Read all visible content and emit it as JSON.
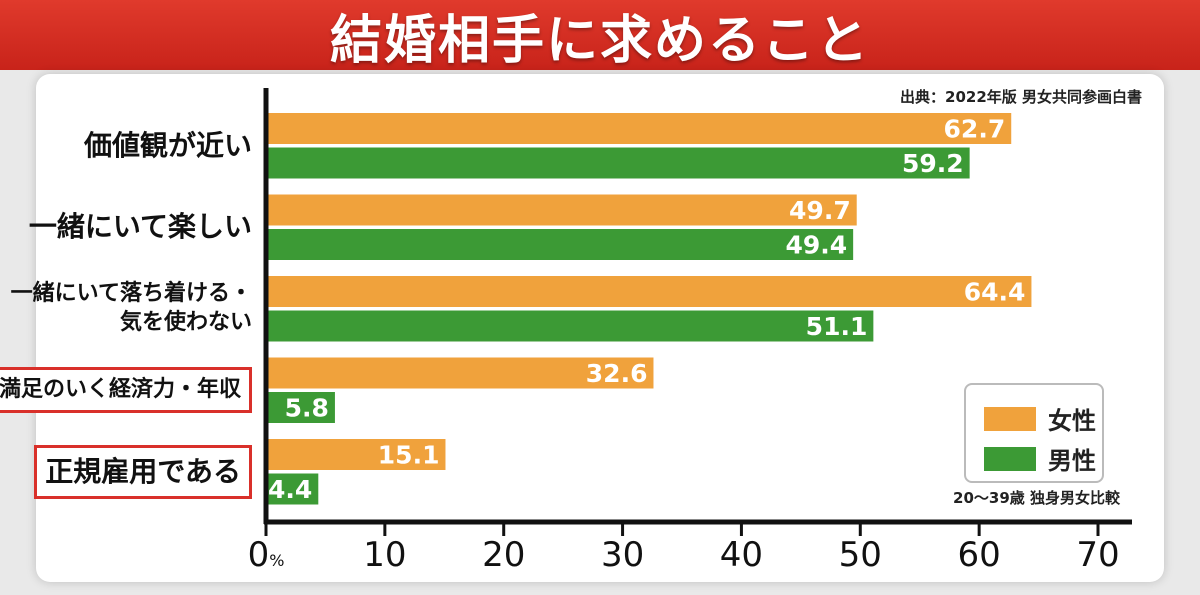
{
  "title": "結婚相手に求めること",
  "source": "出典：2022年版 男女共同参画白書",
  "note": "20〜39歳 独身男女比較",
  "colors": {
    "female": "#f0a23c",
    "male": "#3c9a35",
    "highlight": "#d9302a",
    "title_bg": "#d8291f"
  },
  "legend": [
    {
      "label": "女性",
      "color": "#f0a23c"
    },
    {
      "label": "男性",
      "color": "#3c9a35"
    }
  ],
  "chart_data": {
    "type": "bar",
    "orientation": "horizontal",
    "categories": [
      {
        "lines": [
          "価値観が近い"
        ],
        "highlighted": false
      },
      {
        "lines": [
          "一緒にいて楽しい"
        ],
        "highlighted": false
      },
      {
        "lines": [
          "一緒にいて落ち着ける・",
          "気を使わない"
        ],
        "highlighted": false
      },
      {
        "lines": [
          "満足のいく経済力・年収"
        ],
        "highlighted": true
      },
      {
        "lines": [
          "正規雇用である"
        ],
        "highlighted": true
      }
    ],
    "series": [
      {
        "name": "女性",
        "color": "#f0a23c",
        "values": [
          62.7,
          49.7,
          64.4,
          32.6,
          15.1
        ]
      },
      {
        "name": "男性",
        "color": "#3c9a35",
        "values": [
          59.2,
          49.4,
          51.1,
          5.8,
          4.4
        ]
      }
    ],
    "xlim": [
      0,
      70
    ],
    "ticks": [
      "0",
      "10",
      "20",
      "30",
      "40",
      "50",
      "60",
      "70"
    ],
    "tick_unit": "%",
    "legend_position": "bottom-right"
  }
}
